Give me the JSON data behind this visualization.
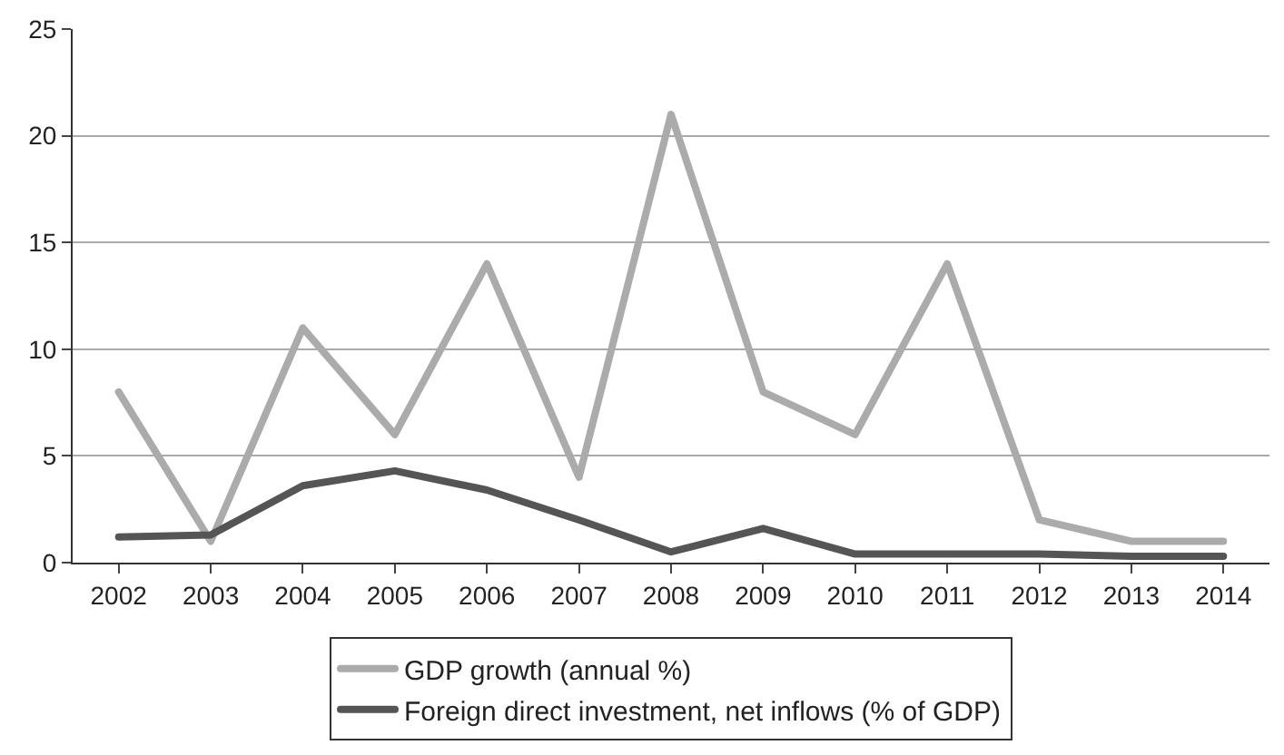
{
  "chart_data": {
    "type": "line",
    "categories": [
      "2002",
      "2003",
      "2004",
      "2005",
      "2006",
      "2007",
      "2008",
      "2009",
      "2010",
      "2011",
      "2012",
      "2013",
      "2014"
    ],
    "series": [
      {
        "name": "GDP growth (annual %)",
        "color": "#ababab",
        "values": [
          8,
          1,
          11,
          6,
          14,
          4,
          21,
          8,
          6,
          14,
          2,
          1,
          1
        ]
      },
      {
        "name": "Foreign direct investment, net inflows (% of GDP)",
        "color": "#555555",
        "values": [
          1.2,
          1.3,
          3.6,
          4.3,
          3.4,
          2.0,
          0.5,
          1.6,
          0.4,
          0.4,
          0.4,
          0.3,
          0.3
        ]
      }
    ],
    "ylim": [
      0,
      25
    ],
    "yticks": [
      0,
      5,
      10,
      15,
      20,
      25
    ],
    "grid": "y",
    "legend": "bottom",
    "marker": "none",
    "line_style": "solid"
  }
}
